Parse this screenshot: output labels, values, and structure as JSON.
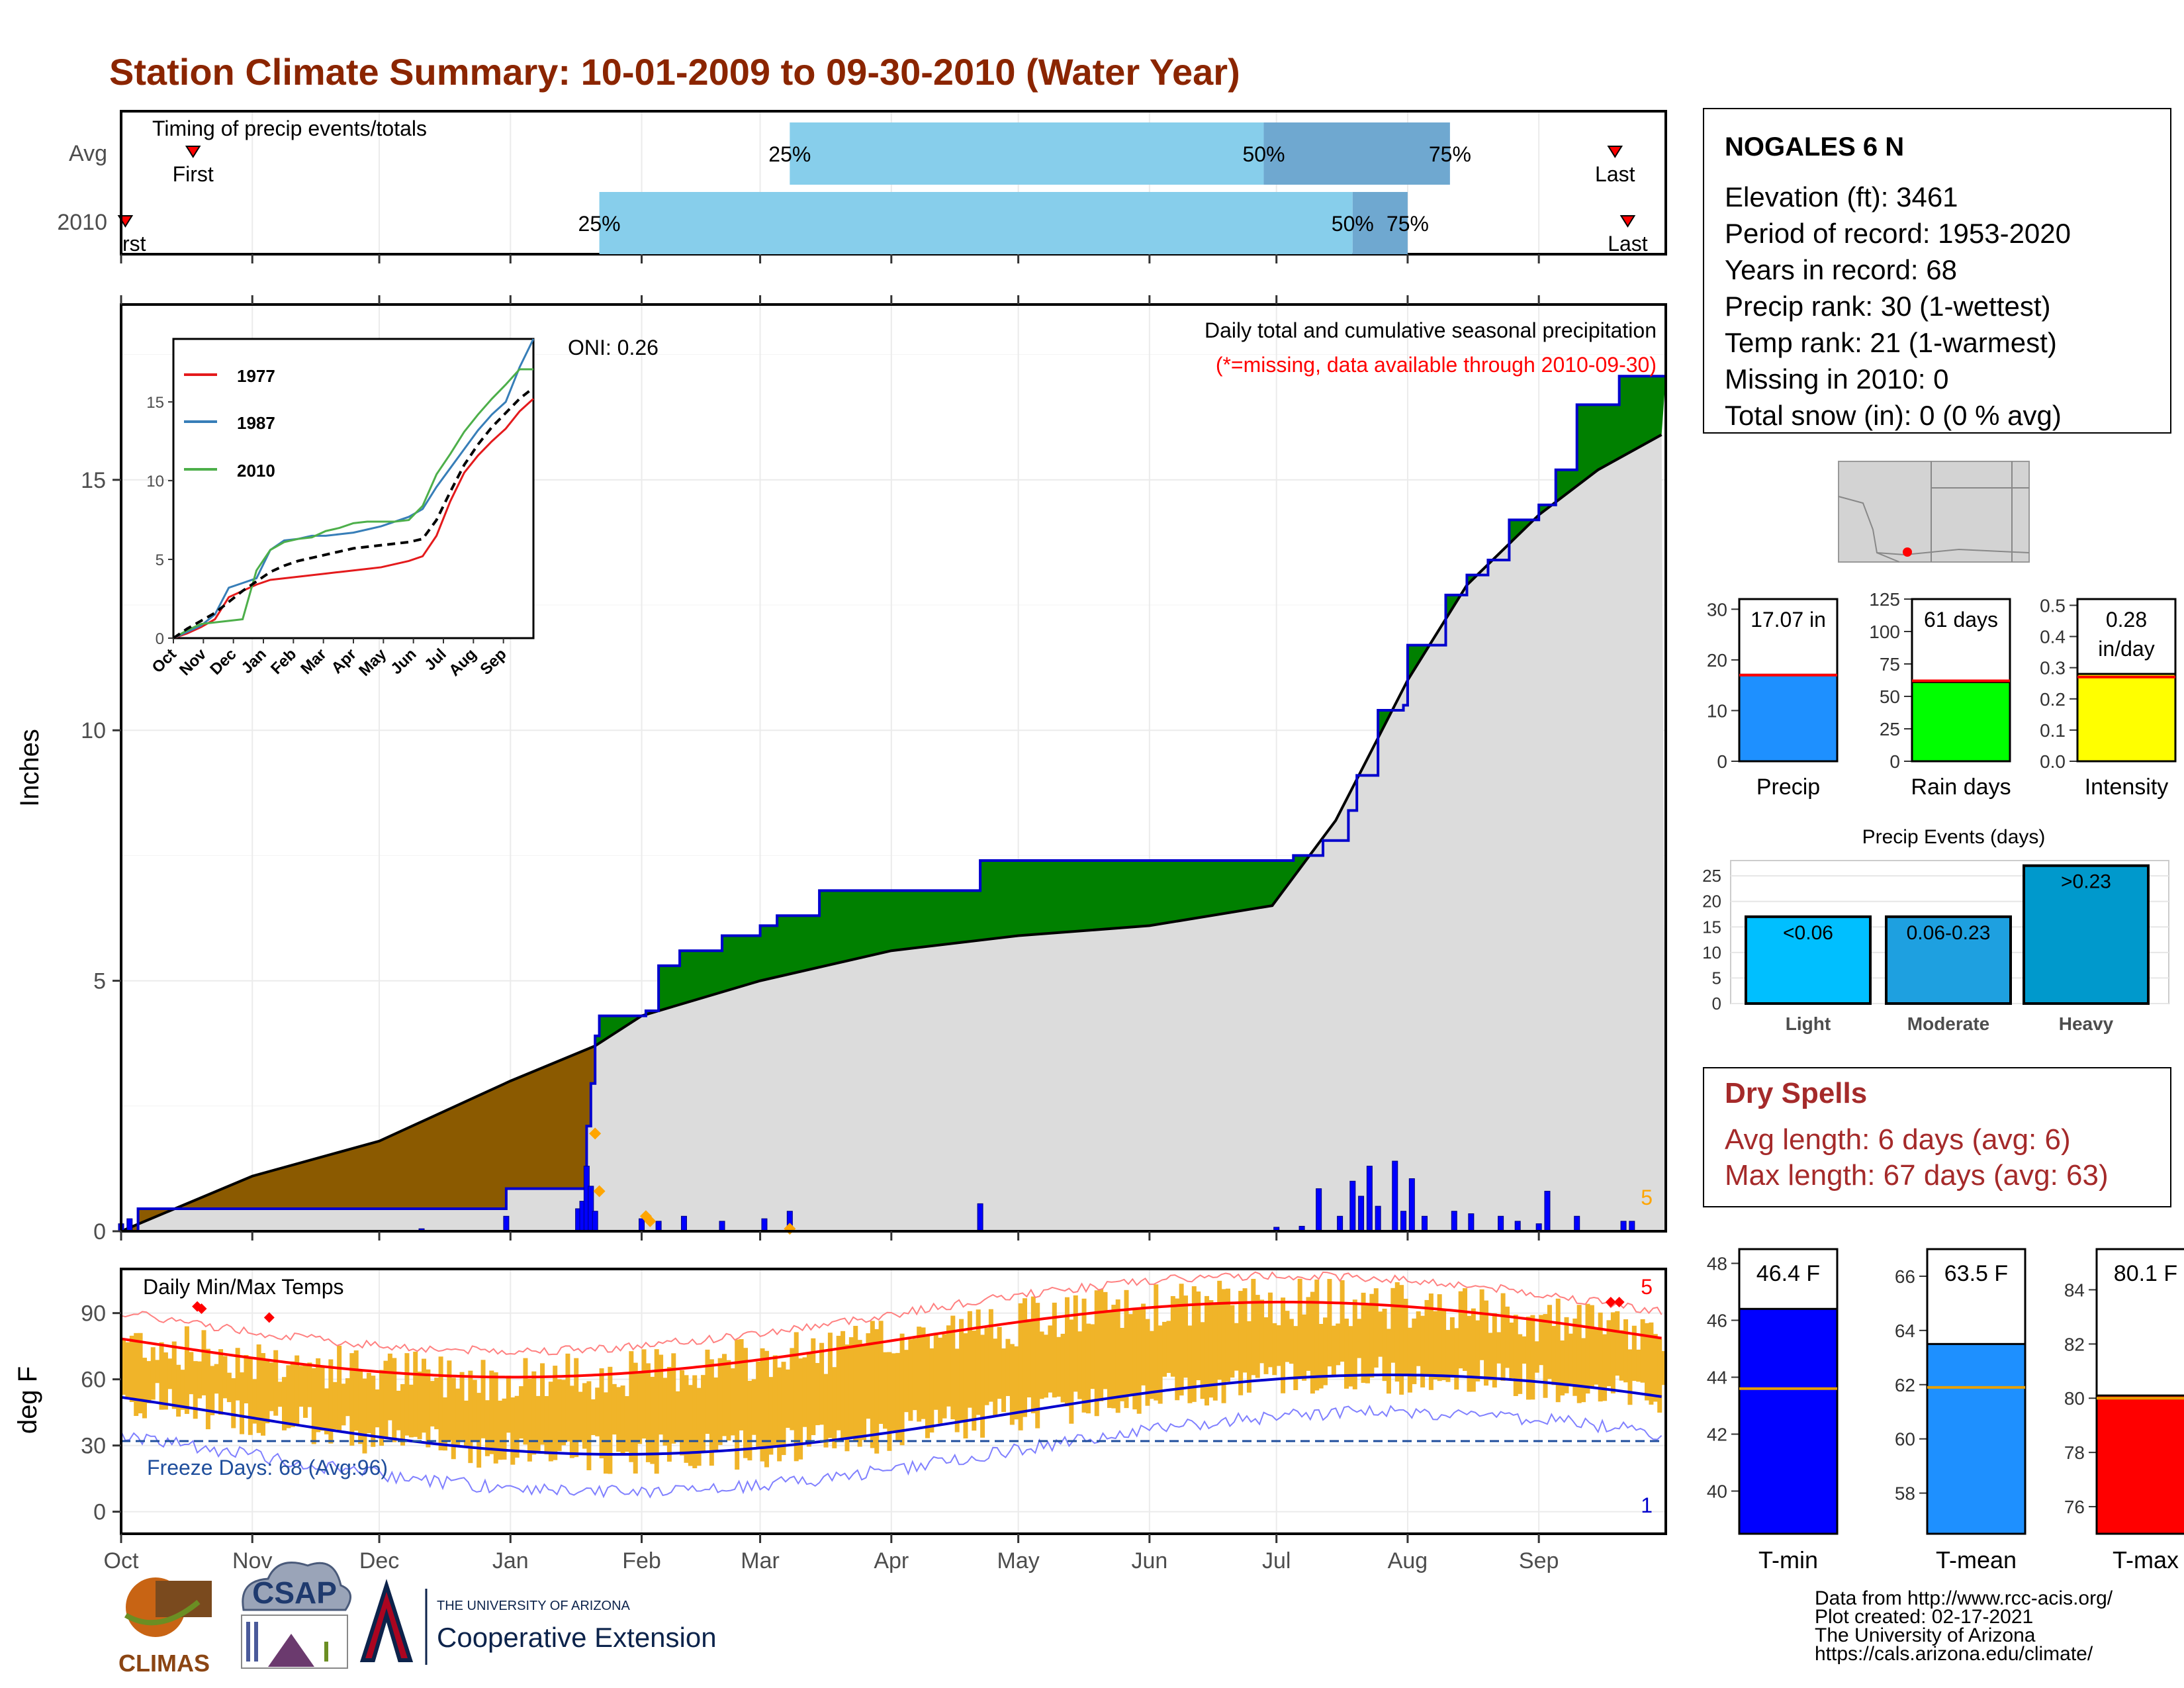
{
  "title": "Station Climate Summary: 10-01-2009 to 09-30-2010 (Water Year)",
  "timing": {
    "label": "Timing of precip events/totals",
    "rows": [
      {
        "name": "Avg",
        "first_label": "First",
        "last_label": "Last",
        "p25": "25%",
        "p50": "50%",
        "p75": "75%"
      },
      {
        "name": "2010",
        "first_label": "First",
        "last_label": "Last",
        "p25": "25%",
        "p50": "50%",
        "p75": "75%"
      }
    ],
    "avg": {
      "first": "2009-10-18",
      "p25": "2010-03-08",
      "p50": "2010-06-28",
      "p75": "2010-08-11",
      "last": "2010-09-19"
    },
    "y2010": {
      "first": "2009-10-02",
      "p25": "2010-01-22",
      "p50": "2010-07-19",
      "p75": "2010-08-01",
      "last": "2010-09-22"
    }
  },
  "station": {
    "name": "NOGALES 6 N",
    "lines": [
      "Elevation (ft): 3461",
      "Period of record: 1953-2020",
      "Years in record: 68",
      "Precip rank: 30 (1-wettest)",
      "Temp rank: 21 (1-warmest)",
      "Missing in 2010: 0",
      "Total snow (in): 0 (0 % avg)"
    ]
  },
  "main": {
    "ylabel": "Inches",
    "oni": "ONI: 0.26",
    "subtitle": "Daily total and cumulative seasonal precipitation",
    "missing_note": "(*=missing, data available through 2010-09-30)",
    "count_label": "5",
    "yticks": [
      "0",
      "5",
      "10",
      "15"
    ]
  },
  "months": [
    "Oct",
    "Nov",
    "Dec",
    "Jan",
    "Feb",
    "Mar",
    "Apr",
    "May",
    "Jun",
    "Jul",
    "Aug",
    "Sep"
  ],
  "inset": {
    "yticks": [
      "0",
      "5",
      "10",
      "15"
    ],
    "xticks": [
      "Oct",
      "Nov",
      "Dec",
      "Jan",
      "Feb",
      "Mar",
      "Apr",
      "May",
      "Jun",
      "Jul",
      "Aug",
      "Sep"
    ],
    "legend": [
      {
        "name": "1977",
        "color": "#e41a1c"
      },
      {
        "name": "1987",
        "color": "#377eb8"
      },
      {
        "name": "2010",
        "color": "#4daf4a"
      }
    ]
  },
  "temps": {
    "label": "Daily Min/Max Temps",
    "ylabel": "deg F",
    "yticks": [
      "0",
      "30",
      "60",
      "90"
    ],
    "freeze": "Freeze Days: 68 (Avg:96)",
    "max_count": "5",
    "min_count": "1"
  },
  "precip_bars": [
    {
      "label": "17.07 in",
      "label2": "",
      "xlabel": "Precip",
      "value": 17.07,
      "avg": 17.0,
      "ymax": 32,
      "ticks": [
        "0",
        "10",
        "20",
        "30"
      ],
      "color": "#1E90FF"
    },
    {
      "label": "61 days",
      "label2": "",
      "xlabel": "Rain days",
      "value": 61,
      "avg": 62,
      "ymax": 125,
      "ticks": [
        "0",
        "25",
        "50",
        "75",
        "100",
        "125"
      ],
      "color": "#00FF00"
    },
    {
      "label": "0.28",
      "label2": "in/day",
      "xlabel": "Intensity",
      "value": 0.28,
      "avg": 0.27,
      "ymax": 0.52,
      "ticks": [
        "0.0",
        "0.1",
        "0.2",
        "0.3",
        "0.4",
        "0.5"
      ],
      "color": "#FFFF00"
    }
  ],
  "events": {
    "title": "Precip Events (days)",
    "ticks": [
      "0",
      "5",
      "10",
      "15",
      "20",
      "25"
    ],
    "bars": [
      {
        "name": "Light",
        "label": "<0.06",
        "value": 17,
        "color": "#00BFFF"
      },
      {
        "name": "Moderate",
        "label": "0.06-0.23",
        "value": 17,
        "color": "#1EA0E0"
      },
      {
        "name": "Heavy",
        "label": ">0.23",
        "value": 27,
        "color": "#0099CC"
      }
    ]
  },
  "dry_spells": {
    "title": "Dry Spells",
    "avg": "Avg length: 6 days (avg: 6)",
    "max": "Max length: 67 days (avg: 63)"
  },
  "temp_bars": [
    {
      "label": "46.4 F",
      "xlabel": "T-min",
      "value": 46.4,
      "avg": 43.6,
      "ymin": 38.5,
      "ymax": 48.5,
      "ticks": [
        "40",
        "42",
        "44",
        "46",
        "48"
      ],
      "color": "#0000FF"
    },
    {
      "label": "63.5 F",
      "xlabel": "T-mean",
      "value": 63.5,
      "avg": 61.9,
      "ymin": 56.5,
      "ymax": 67,
      "ticks": [
        "58",
        "60",
        "62",
        "64",
        "66"
      ],
      "color": "#1E90FF"
    },
    {
      "label": "80.1 F",
      "xlabel": "T-max",
      "value": 80.1,
      "avg": 80.0,
      "ymin": 75,
      "ymax": 85.5,
      "ticks": [
        "76",
        "78",
        "80",
        "82",
        "84"
      ],
      "color": "#FF0000"
    }
  ],
  "credits": [
    "Data from http://www.rcc-acis.org/",
    "Plot created: 02-17-2021",
    "The University of Arizona",
    "https://cals.arizona.edu/climate/"
  ],
  "logos": {
    "climas": "CLIMAS",
    "csap": "CSAP",
    "ua_top": "THE UNIVERSITY OF ARIZONA",
    "ua_bottom": "Cooperative Extension"
  },
  "chart_data": {
    "type": "area",
    "ylabel": "Inches",
    "series": [
      {
        "name": "2010",
        "x": [
          "2009-10-01",
          "2009-10-05",
          "2009-11-15",
          "2009-12-31",
          "2010-01-18",
          "2010-01-19",
          "2010-01-20",
          "2010-01-21",
          "2010-01-22",
          "2010-02-02",
          "2010-02-05",
          "2010-02-10",
          "2010-02-20",
          "2010-03-01",
          "2010-03-05",
          "2010-03-15",
          "2010-04-22",
          "2010-06-30",
          "2010-07-05",
          "2010-07-12",
          "2010-07-18",
          "2010-07-20",
          "2010-07-25",
          "2010-07-31",
          "2010-08-01",
          "2010-08-10",
          "2010-08-15",
          "2010-08-20",
          "2010-08-25",
          "2010-09-01",
          "2010-09-05",
          "2010-09-10",
          "2010-09-20",
          "2010-09-30"
        ],
        "values": [
          0.0,
          0.45,
          0.45,
          0.85,
          0.85,
          2.1,
          2.95,
          3.9,
          4.3,
          4.4,
          5.3,
          5.6,
          5.9,
          6.1,
          6.3,
          6.8,
          7.4,
          7.4,
          7.5,
          7.8,
          8.4,
          9.1,
          10.4,
          10.5,
          11.7,
          12.7,
          13.1,
          13.4,
          14.2,
          14.5,
          15.2,
          16.5,
          17.07,
          17.07
        ]
      },
      {
        "name": "Avg",
        "x": [
          "2009-10-01",
          "2009-11-01",
          "2009-12-01",
          "2010-01-01",
          "2010-01-21",
          "2010-02-01",
          "2010-03-01",
          "2010-04-01",
          "2010-05-01",
          "2010-06-01",
          "2010-06-30",
          "2010-07-15",
          "2010-08-01",
          "2010-08-15",
          "2010-09-01",
          "2010-09-15",
          "2010-09-30"
        ],
        "values": [
          0.0,
          1.1,
          1.8,
          3.0,
          3.7,
          4.3,
          5.0,
          5.6,
          5.9,
          6.1,
          6.5,
          8.2,
          11.0,
          12.9,
          14.3,
          15.2,
          15.9
        ]
      }
    ],
    "daily_precip": [
      {
        "x": "2009-10-01",
        "v": 0.15
      },
      {
        "x": "2009-10-03",
        "v": 0.25
      },
      {
        "x": "2009-12-11",
        "v": 0.05
      },
      {
        "x": "2009-12-31",
        "v": 0.3
      },
      {
        "x": "2010-01-17",
        "v": 0.45
      },
      {
        "x": "2010-01-18",
        "v": 0.6
      },
      {
        "x": "2010-01-19",
        "v": 1.3
      },
      {
        "x": "2010-01-20",
        "v": 0.9
      },
      {
        "x": "2010-01-21",
        "v": 0.4
      },
      {
        "x": "2010-02-01",
        "v": 0.25
      },
      {
        "x": "2010-02-05",
        "v": 0.2
      },
      {
        "x": "2010-02-11",
        "v": 0.3
      },
      {
        "x": "2010-02-20",
        "v": 0.2
      },
      {
        "x": "2010-03-02",
        "v": 0.25
      },
      {
        "x": "2010-03-08",
        "v": 0.4
      },
      {
        "x": "2010-04-22",
        "v": 0.55
      },
      {
        "x": "2010-07-01",
        "v": 0.08
      },
      {
        "x": "2010-07-07",
        "v": 0.1
      },
      {
        "x": "2010-07-11",
        "v": 0.85
      },
      {
        "x": "2010-07-16",
        "v": 0.3
      },
      {
        "x": "2010-07-19",
        "v": 1.0
      },
      {
        "x": "2010-07-21",
        "v": 0.7
      },
      {
        "x": "2010-07-23",
        "v": 1.3
      },
      {
        "x": "2010-07-25",
        "v": 0.5
      },
      {
        "x": "2010-07-29",
        "v": 1.4
      },
      {
        "x": "2010-07-31",
        "v": 0.4
      },
      {
        "x": "2010-08-02",
        "v": 1.05
      },
      {
        "x": "2010-08-05",
        "v": 0.3
      },
      {
        "x": "2010-08-12",
        "v": 0.4
      },
      {
        "x": "2010-08-16",
        "v": 0.35
      },
      {
        "x": "2010-08-23",
        "v": 0.3
      },
      {
        "x": "2010-08-27",
        "v": 0.2
      },
      {
        "x": "2010-09-01",
        "v": 0.15
      },
      {
        "x": "2010-09-03",
        "v": 0.8
      },
      {
        "x": "2010-09-10",
        "v": 0.3
      },
      {
        "x": "2010-09-21",
        "v": 0.2
      },
      {
        "x": "2010-09-23",
        "v": 0.2
      }
    ],
    "xlim": [
      "2009-10-01",
      "2010-09-30"
    ],
    "ylim": [
      0,
      18.5
    ]
  }
}
